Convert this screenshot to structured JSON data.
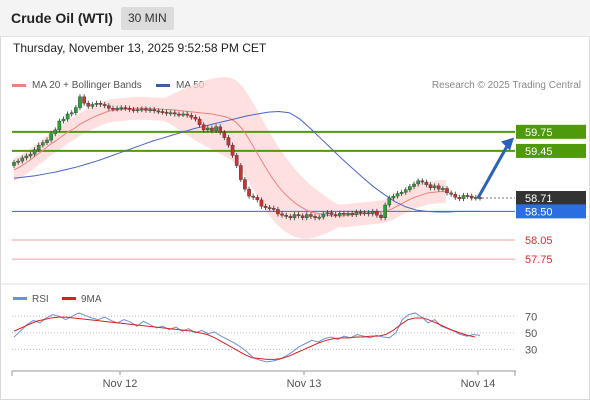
{
  "header": {
    "title": "Crude Oil (WTI)",
    "interval": "30 MIN"
  },
  "datetime": "Thursday, November 13, 2025 9:52:58 PM CET",
  "legend": {
    "bb_label": "MA 20 + Bollinger Bands",
    "ma50_label": "MA 50",
    "rsi_label": "RSI",
    "rsi_ma_label": "9MA",
    "credit": "Research © 2025 Trading Central"
  },
  "colors": {
    "bb_band": "#fdd5d5",
    "ma20": "#f08080",
    "ma50": "#4a64c8",
    "up_candle": "#2e9e3a",
    "down_candle": "#d03030",
    "resistance": "#4f9a0a",
    "support_pivot": "#2a6ee0",
    "support_low": "#f0a0a0",
    "rsi": "#6f8fd8",
    "rsi_ma": "#d82020",
    "arrow": "#2a62b8"
  },
  "chart_data": {
    "type": "candlestick",
    "x_tick_labels": [
      "Nov 12",
      "Nov 13",
      "Nov 14"
    ],
    "price_range": [
      57.5,
      60.25
    ],
    "levels": [
      {
        "value": 59.75,
        "label": "59.75",
        "kind": "resistance"
      },
      {
        "value": 59.45,
        "label": "59.45",
        "kind": "resistance"
      },
      {
        "value": 58.71,
        "label": "58.71",
        "kind": "last-price"
      },
      {
        "value": 58.5,
        "label": "58.50",
        "kind": "pivot"
      },
      {
        "value": 58.05,
        "label": "58.05",
        "kind": "support"
      },
      {
        "value": 57.75,
        "label": "57.75",
        "kind": "support"
      }
    ],
    "price_close": [
      59.27,
      59.29,
      59.34,
      59.37,
      59.4,
      59.47,
      59.54,
      59.58,
      59.62,
      59.72,
      59.78,
      59.92,
      59.95,
      60.03,
      60.05,
      60.13,
      60.3,
      60.2,
      60.15,
      60.18,
      60.2,
      60.18,
      60.16,
      60.12,
      60.11,
      60.12,
      60.13,
      60.12,
      60.1,
      60.09,
      60.1,
      60.11,
      60.09,
      60.1,
      60.08,
      60.07,
      60.06,
      60.04,
      60.05,
      60.03,
      60.02,
      60.03,
      60.01,
      59.98,
      59.95,
      59.86,
      59.78,
      59.81,
      59.77,
      59.83,
      59.74,
      59.66,
      59.54,
      59.38,
      59.22,
      59.0,
      58.85,
      58.74,
      58.72,
      58.68,
      58.58,
      58.56,
      58.55,
      58.53,
      58.46,
      58.44,
      58.42,
      58.4,
      58.45,
      58.43,
      58.4,
      58.45,
      58.42,
      58.4,
      58.41,
      58.46,
      58.48,
      58.45,
      58.44,
      58.47,
      58.46,
      58.47,
      58.45,
      58.49,
      58.47,
      58.48,
      58.46,
      58.5,
      58.44,
      58.4,
      58.6,
      58.71,
      58.74,
      58.78,
      58.8,
      58.84,
      58.89,
      58.93,
      58.98,
      58.96,
      58.92,
      58.87,
      58.9,
      58.85,
      58.86,
      58.79,
      58.77,
      58.72,
      58.7,
      58.75,
      58.74,
      58.71,
      58.72,
      58.71
    ],
    "ma20": [
      59.15,
      59.2,
      59.26,
      59.33,
      59.4,
      59.47,
      59.55,
      59.61,
      59.68,
      59.75,
      59.8,
      59.87,
      59.92,
      59.97,
      60.01,
      60.05,
      60.08,
      60.09,
      60.1,
      60.11,
      60.12,
      60.12,
      60.12,
      60.11,
      60.11,
      60.1,
      60.1,
      60.09,
      60.08,
      60.07,
      60.06,
      60.05,
      60.04,
      60.03,
      60.01,
      59.99,
      59.96,
      59.9,
      59.8,
      59.66,
      59.5,
      59.34,
      59.18,
      59.03,
      58.9,
      58.79,
      58.7,
      58.62,
      58.56,
      58.51,
      58.48,
      58.46,
      58.44,
      58.43,
      58.43,
      58.43,
      58.44,
      58.45,
      58.46,
      58.47,
      58.48,
      58.49,
      58.51,
      58.54,
      58.59,
      58.64,
      58.69,
      58.73,
      58.76,
      58.79,
      58.8,
      58.81,
      58.81
    ],
    "ma20_x_step": 6,
    "ma50": [
      59.02,
      59.04,
      59.06,
      59.09,
      59.12,
      59.16,
      59.2,
      59.25,
      59.3,
      59.36,
      59.42,
      59.48,
      59.54,
      59.6,
      59.65,
      59.7,
      59.75,
      59.8,
      59.84,
      59.88,
      59.92,
      59.96,
      60.0,
      60.03,
      60.06,
      60.07,
      60.05,
      59.95,
      59.8,
      59.64,
      59.48,
      59.32,
      59.17,
      59.02,
      58.88,
      58.76,
      58.65,
      58.57,
      58.52,
      58.5,
      58.49,
      58.49,
      58.5,
      58.5,
      58.5
    ],
    "rsi_range": [
      10,
      80
    ],
    "rsi_levels": [
      70,
      50,
      30
    ],
    "rsi": [
      45,
      52,
      60,
      65,
      62,
      68,
      72,
      70,
      66,
      70,
      74,
      71,
      68,
      66,
      69,
      65,
      62,
      66,
      63,
      58,
      64,
      60,
      56,
      58,
      54,
      57,
      52,
      55,
      50,
      53,
      49,
      51,
      46,
      42,
      38,
      33,
      27,
      20,
      17,
      15,
      16,
      18,
      22,
      27,
      33,
      37,
      41,
      39,
      43,
      45,
      42,
      46,
      44,
      48,
      46,
      44,
      47,
      45,
      44,
      50,
      66,
      72,
      74,
      69,
      62,
      66,
      58,
      55,
      52,
      48,
      46,
      48,
      47
    ],
    "rsi_ma": [
      52,
      56,
      60,
      64,
      66,
      68,
      69,
      69,
      68,
      67,
      66,
      65,
      64,
      63,
      62,
      61,
      60,
      59,
      58,
      57,
      56,
      55,
      54,
      53,
      52,
      50,
      48,
      44,
      39,
      34,
      29,
      24,
      20,
      19,
      18,
      18,
      19,
      22,
      26,
      30,
      34,
      38,
      41,
      43,
      44,
      44,
      45,
      45,
      46,
      46,
      48,
      53,
      60,
      66,
      68,
      68,
      65,
      61,
      57,
      53,
      50,
      47,
      45
    ]
  },
  "axis_labels": {
    "rsi70": "70",
    "rsi50": "50",
    "rsi30": "30"
  }
}
